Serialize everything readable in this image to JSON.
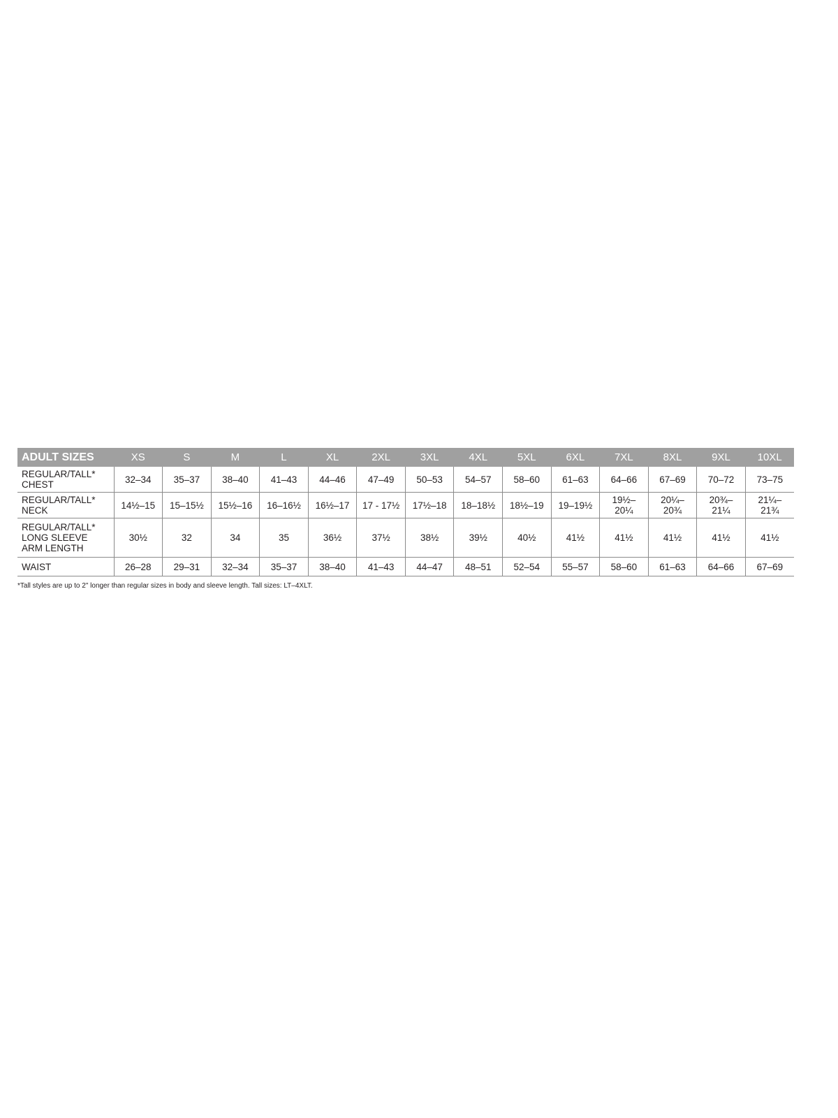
{
  "table": {
    "corner": "ADULT SIZES",
    "sizes": [
      "XS",
      "S",
      "M",
      "L",
      "XL",
      "2XL",
      "3XL",
      "4XL",
      "5XL",
      "6XL",
      "7XL",
      "8XL",
      "9XL",
      "10XL"
    ],
    "rows": [
      {
        "label": [
          "REGULAR/TALL*",
          "CHEST"
        ],
        "values": [
          "32–34",
          "35–37",
          "38–40",
          "41–43",
          "44–46",
          "47–49",
          "50–53",
          "54–57",
          "58–60",
          "61–63",
          "64–66",
          "67–69",
          "70–72",
          "73–75"
        ]
      },
      {
        "label": [
          "REGULAR/TALL*",
          "NECK"
        ],
        "values": [
          "14½–15",
          "15–15½",
          "15½–16",
          "16–16½",
          "16½–17",
          "17 - 17½",
          "17½–18",
          "18–18½",
          "18½–19",
          "19–19½",
          "19½–\n20¼",
          "20¼–\n20¾",
          "20¾–\n21¼",
          "21¼–\n21¾"
        ]
      },
      {
        "label": [
          "REGULAR/TALL*",
          "LONG SLEEVE",
          "ARM LENGTH"
        ],
        "values": [
          "30½",
          "32",
          "34",
          "35",
          "36½",
          "37½",
          "38½",
          "39½",
          "40½",
          "41½",
          "41½",
          "41½",
          "41½",
          "41½"
        ]
      },
      {
        "label": [
          "WAIST"
        ],
        "values": [
          "26–28",
          "29–31",
          "32–34",
          "35–37",
          "38–40",
          "41–43",
          "44–47",
          "48–51",
          "52–54",
          "55–57",
          "58–60",
          "61–63",
          "64–66",
          "67–69"
        ]
      }
    ]
  },
  "footnote": "*Tall styles are up to 2\" longer than regular sizes in body and sleeve length. Tall sizes: LT–4XLT.",
  "colors": {
    "header_bg": "#a0a0a0",
    "header_text": "#ffffff",
    "border": "#8a8a8a"
  }
}
